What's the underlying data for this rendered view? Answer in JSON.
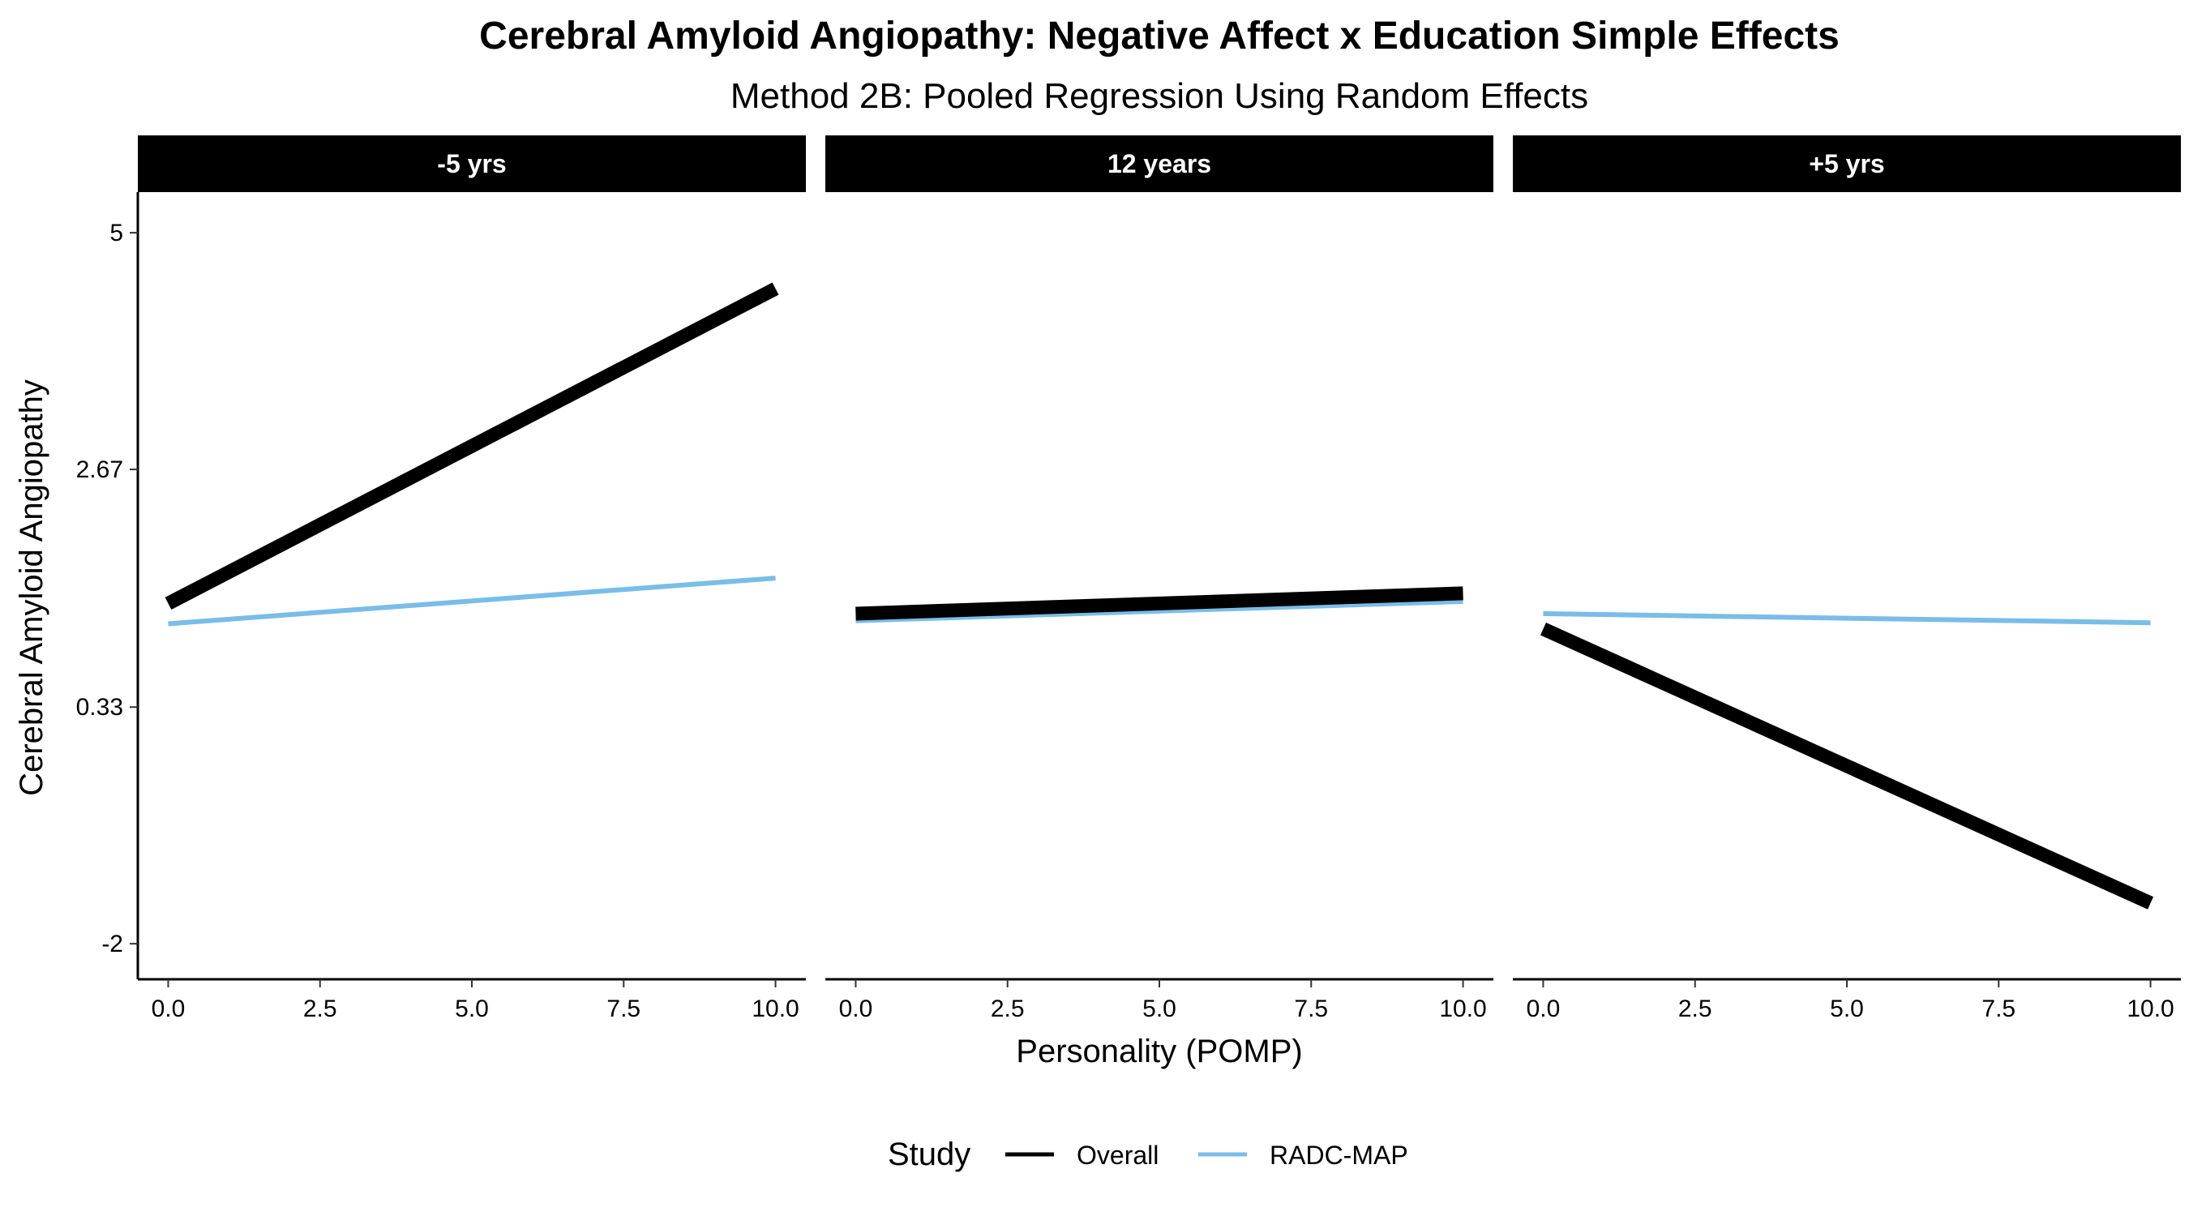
{
  "chart_data": {
    "type": "line",
    "title": "Cerebral Amyloid Angiopathy: Negative Affect x Education Simple Effects",
    "subtitle": "Method 2B: Pooled Regression Using Random Effects",
    "xlabel": "Personality (POMP)",
    "ylabel": "Cerebral Amyloid Angiopathy",
    "xlim": [
      -0.5,
      10.5
    ],
    "ylim": [
      -2.35,
      5.4
    ],
    "x_ticks": [
      "0.0",
      "2.5",
      "5.0",
      "7.5",
      "10.0"
    ],
    "x_tick_values": [
      0,
      2.5,
      5,
      7.5,
      10
    ],
    "y_ticks": [
      "-2",
      "0.33",
      "2.67",
      "5"
    ],
    "y_tick_values": [
      -2,
      0.33,
      2.67,
      5
    ],
    "grid": false,
    "legend": {
      "title": "Study",
      "position": "bottom",
      "entries": [
        {
          "name": "Overall",
          "color": "#000000"
        },
        {
          "name": "RADC-MAP",
          "color": "#79BDE8"
        }
      ]
    },
    "facets": [
      {
        "label": "-5 yrs",
        "series": [
          {
            "name": "Overall",
            "x": [
              0,
              10
            ],
            "y": [
              1.35,
              4.45
            ]
          },
          {
            "name": "RADC-MAP",
            "x": [
              0,
              10
            ],
            "y": [
              1.15,
              1.6
            ]
          }
        ]
      },
      {
        "label": "12 years",
        "series": [
          {
            "name": "Overall",
            "x": [
              0,
              10
            ],
            "y": [
              1.25,
              1.45
            ]
          },
          {
            "name": "RADC-MAP",
            "x": [
              0,
              10
            ],
            "y": [
              1.18,
              1.37
            ]
          }
        ]
      },
      {
        "label": "+5 yrs",
        "series": [
          {
            "name": "Overall",
            "x": [
              0,
              10
            ],
            "y": [
              1.1,
              -1.6
            ]
          },
          {
            "name": "RADC-MAP",
            "x": [
              0,
              10
            ],
            "y": [
              1.25,
              1.16
            ]
          }
        ]
      }
    ]
  }
}
